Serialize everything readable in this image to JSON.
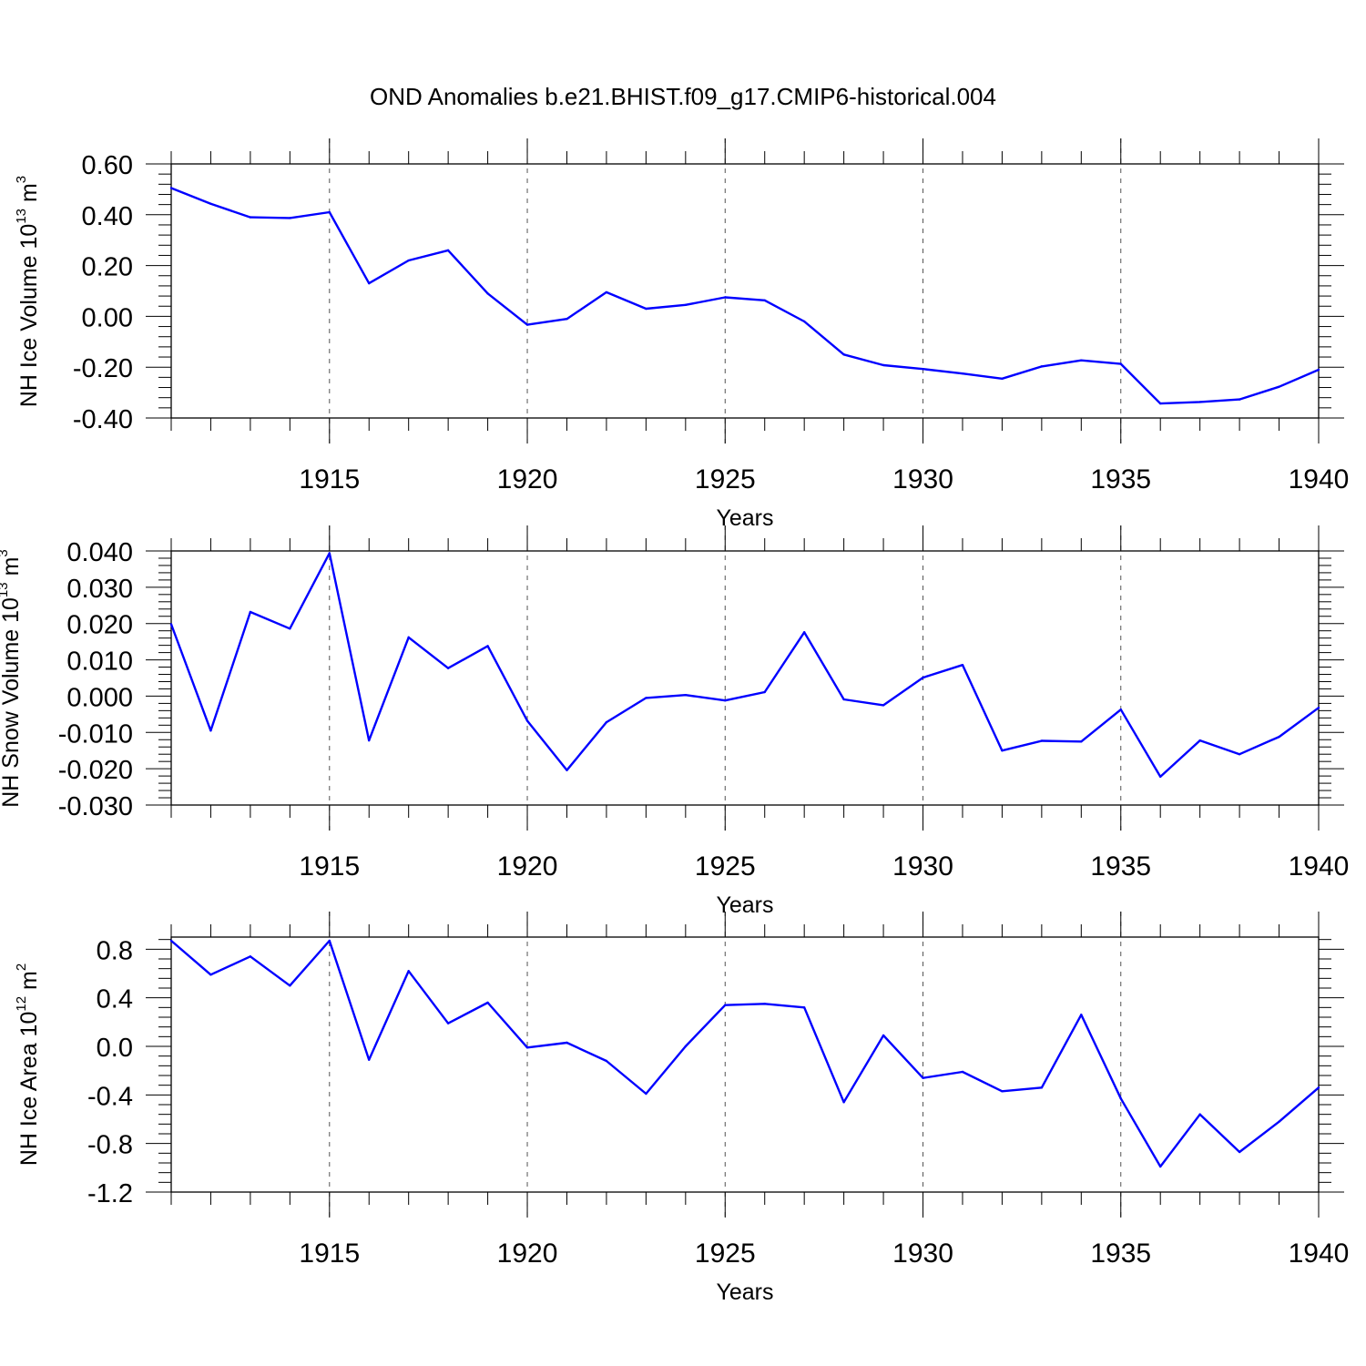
{
  "title": "OND Anomalies b.e21.BHIST.f09_g17.CMIP6-historical.004",
  "colors": {
    "line": "#0000ff",
    "axes": "#000000",
    "grid": "#555555"
  },
  "chart_data": [
    {
      "type": "line",
      "ylabel_main": "NH Ice Volume 10",
      "ylabel_exp": "13",
      "ylabel_unit": " m",
      "ylabel_unit_exp": "3",
      "xlabel": "Years",
      "xlim": [
        1911,
        1940
      ],
      "ylim": [
        -0.4,
        0.6
      ],
      "yticks": [
        -0.4,
        -0.2,
        0.0,
        0.2,
        0.4,
        0.6
      ],
      "ytick_labels": [
        "-0.40",
        "-0.20",
        "0.00",
        "0.20",
        "0.40",
        "0.60"
      ],
      "xticks": [
        1915,
        1920,
        1925,
        1930,
        1935,
        1940
      ],
      "xtick_labels": [
        "1915",
        "1920",
        "1925",
        "1930",
        "1935",
        "1940"
      ],
      "grid": "vertical dashed at major x ticks",
      "x": [
        1911,
        1912,
        1913,
        1914,
        1915,
        1916,
        1917,
        1918,
        1919,
        1920,
        1921,
        1922,
        1923,
        1924,
        1925,
        1926,
        1927,
        1928,
        1929,
        1930,
        1931,
        1932,
        1933,
        1934,
        1935,
        1936,
        1937,
        1938,
        1939,
        1940
      ],
      "values": [
        0.505,
        0.443,
        0.39,
        0.387,
        0.41,
        0.13,
        0.22,
        0.26,
        0.09,
        -0.033,
        -0.01,
        0.095,
        0.03,
        0.045,
        0.075,
        0.063,
        -0.02,
        -0.15,
        -0.192,
        -0.207,
        -0.225,
        -0.245,
        -0.197,
        -0.173,
        -0.187,
        -0.343,
        -0.337,
        -0.327,
        -0.277,
        -0.21
      ]
    },
    {
      "type": "line",
      "ylabel_main": "NH Snow Volume 10",
      "ylabel_exp": "13",
      "ylabel_unit": " m",
      "ylabel_unit_exp": "3",
      "xlabel": "Years",
      "xlim": [
        1911,
        1940
      ],
      "ylim": [
        -0.03,
        0.04
      ],
      "yticks": [
        -0.03,
        -0.02,
        -0.01,
        0.0,
        0.01,
        0.02,
        0.03,
        0.04
      ],
      "ytick_labels": [
        "-0.030",
        "-0.020",
        "-0.010",
        "0.000",
        "0.010",
        "0.020",
        "0.030",
        "0.040"
      ],
      "xticks": [
        1915,
        1920,
        1925,
        1930,
        1935,
        1940
      ],
      "xtick_labels": [
        "1915",
        "1920",
        "1925",
        "1930",
        "1935",
        "1940"
      ],
      "grid": "vertical dashed at major x ticks",
      "x": [
        1911,
        1912,
        1913,
        1914,
        1915,
        1916,
        1917,
        1918,
        1919,
        1920,
        1921,
        1922,
        1923,
        1924,
        1925,
        1926,
        1927,
        1928,
        1929,
        1930,
        1931,
        1932,
        1933,
        1934,
        1935,
        1936,
        1937,
        1938,
        1939,
        1940
      ],
      "values": [
        0.0198,
        -0.0095,
        0.0232,
        0.0186,
        0.0394,
        -0.0122,
        0.0162,
        0.0077,
        0.0138,
        -0.0068,
        -0.0204,
        -0.0072,
        -0.0005,
        0.0003,
        -0.0012,
        0.0011,
        0.0176,
        -0.0009,
        -0.0025,
        0.0051,
        0.0086,
        -0.015,
        -0.0123,
        -0.0125,
        -0.0037,
        -0.0222,
        -0.0122,
        -0.016,
        -0.0112,
        -0.0032
      ]
    },
    {
      "type": "line",
      "ylabel_main": "NH Ice Area 10",
      "ylabel_exp": "12",
      "ylabel_unit": " m",
      "ylabel_unit_exp": "2",
      "xlabel": "Years",
      "xlim": [
        1911,
        1940
      ],
      "ylim": [
        -1.2,
        0.9
      ],
      "yticks": [
        -1.2,
        -0.8,
        -0.4,
        0.0,
        0.4,
        0.8
      ],
      "ytick_labels": [
        "-1.2",
        "-0.8",
        "-0.4",
        "0.0",
        "0.4",
        "0.8"
      ],
      "xticks": [
        1915,
        1920,
        1925,
        1930,
        1935,
        1940
      ],
      "xtick_labels": [
        "1915",
        "1920",
        "1925",
        "1930",
        "1935",
        "1940"
      ],
      "grid": "vertical dashed at major x ticks",
      "x": [
        1911,
        1912,
        1913,
        1914,
        1915,
        1916,
        1917,
        1918,
        1919,
        1920,
        1921,
        1922,
        1923,
        1924,
        1925,
        1926,
        1927,
        1928,
        1929,
        1930,
        1931,
        1932,
        1933,
        1934,
        1935,
        1936,
        1937,
        1938,
        1939,
        1940
      ],
      "values": [
        0.87,
        0.59,
        0.74,
        0.5,
        0.87,
        -0.11,
        0.62,
        0.19,
        0.36,
        -0.01,
        0.03,
        -0.12,
        -0.39,
        0.0,
        0.34,
        0.35,
        0.32,
        -0.46,
        0.09,
        -0.26,
        -0.21,
        -0.37,
        -0.34,
        0.26,
        -0.43,
        -0.99,
        -0.56,
        -0.87,
        -0.62,
        -0.34
      ]
    }
  ]
}
